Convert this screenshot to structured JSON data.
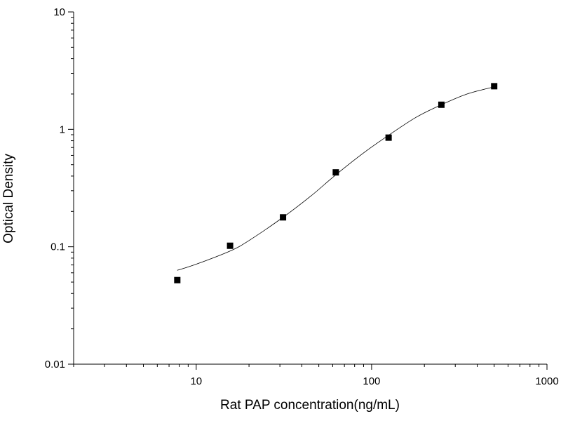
{
  "chart_data": {
    "type": "scatter",
    "title": "",
    "xlabel": "Rat PAP concentration(ng/mL)",
    "ylabel": "Optical Density",
    "x_scale": "log",
    "y_scale": "log",
    "xlim": [
      2,
      1000
    ],
    "ylim": [
      0.01,
      10
    ],
    "x_ticks": [
      {
        "value": 10,
        "label": "10"
      },
      {
        "value": 100,
        "label": "100"
      },
      {
        "value": 1000,
        "label": "1000"
      }
    ],
    "y_ticks": [
      {
        "value": 0.01,
        "label": "0.01"
      },
      {
        "value": 0.1,
        "label": "0.1"
      },
      {
        "value": 1,
        "label": "1"
      },
      {
        "value": 10,
        "label": "10"
      }
    ],
    "grid": false,
    "legend": "none",
    "series": [
      {
        "points": [
          {
            "x": 7.8,
            "y": 0.052
          },
          {
            "x": 15.6,
            "y": 0.102
          },
          {
            "x": 31.25,
            "y": 0.178
          },
          {
            "x": 62.5,
            "y": 0.43
          },
          {
            "x": 125,
            "y": 0.85
          },
          {
            "x": 250,
            "y": 1.62
          },
          {
            "x": 500,
            "y": 2.33
          }
        ],
        "marker": "square",
        "color": "#000000"
      }
    ],
    "fit_curve": {
      "type": "sigmoidal",
      "color": "#000000",
      "points": [
        {
          "x": 7.8,
          "y": 0.063
        },
        {
          "x": 10,
          "y": 0.071
        },
        {
          "x": 15.6,
          "y": 0.092
        },
        {
          "x": 20,
          "y": 0.113
        },
        {
          "x": 31.25,
          "y": 0.178
        },
        {
          "x": 45,
          "y": 0.27
        },
        {
          "x": 62.5,
          "y": 0.41
        },
        {
          "x": 90,
          "y": 0.63
        },
        {
          "x": 125,
          "y": 0.89
        },
        {
          "x": 180,
          "y": 1.27
        },
        {
          "x": 250,
          "y": 1.62
        },
        {
          "x": 350,
          "y": 2.0
        },
        {
          "x": 500,
          "y": 2.3
        }
      ]
    }
  }
}
